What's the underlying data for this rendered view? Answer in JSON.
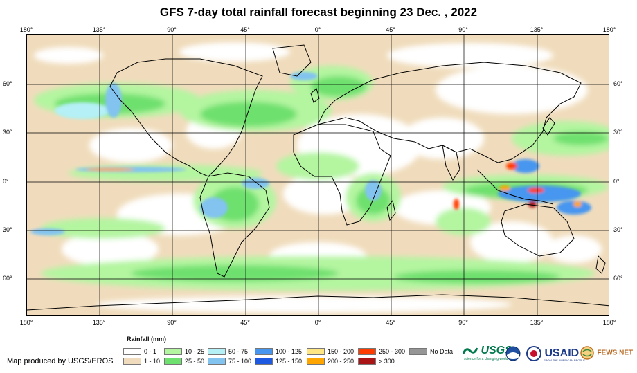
{
  "title": "GFS 7-day total rainfall forecast beginning 23 Dec. , 2022",
  "lon_ticks": [
    "180°",
    "135°",
    "90°",
    "45°",
    "0°",
    "45°",
    "90°",
    "135°",
    "180°"
  ],
  "lat_ticks": [
    "60°",
    "30°",
    "0°",
    "30°",
    "60°"
  ],
  "legend": {
    "title": "Rainfall (mm)",
    "items": [
      {
        "label": "0 - 1",
        "color": "#ffffff"
      },
      {
        "label": "1 - 10",
        "color": "#f0dcbc"
      },
      {
        "label": "10 - 25",
        "color": "#b4f5a0"
      },
      {
        "label": "25 - 50",
        "color": "#6ee06e"
      },
      {
        "label": "50 - 75",
        "color": "#b4f0f5"
      },
      {
        "label": "75 - 100",
        "color": "#82c3f0"
      },
      {
        "label": "100 - 125",
        "color": "#4696f0"
      },
      {
        "label": "125 - 150",
        "color": "#1e5ae1"
      },
      {
        "label": "150 - 200",
        "color": "#ffe682"
      },
      {
        "label": "200 - 250",
        "color": "#ffa500"
      },
      {
        "label": "250 - 300",
        "color": "#ff3c00"
      },
      {
        "label": "> 300",
        "color": "#aa1414"
      },
      {
        "label": "No Data",
        "color": "#969696"
      }
    ]
  },
  "credit": "Map produced by USGS/EROS",
  "logos": {
    "usgs": "USGS",
    "usgs_tagline": "science for a changing world",
    "usaid": "USAID",
    "usaid_tagline": "FROM THE AMERICAN PEOPLE",
    "fewsnet": "FEWS NET"
  }
}
